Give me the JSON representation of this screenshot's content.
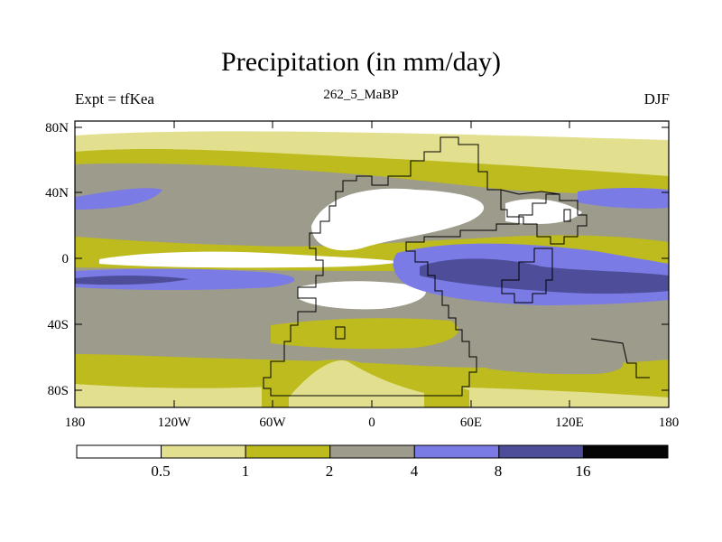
{
  "figure": {
    "title": "Precipitation (in mm/day)",
    "subtitle": "262_5_MaBP",
    "left_string": "Expt = tfKea",
    "right_string": "DJF"
  },
  "axes": {
    "x_ticks": [
      "180",
      "120W",
      "60W",
      "0",
      "60E",
      "120E",
      "180"
    ],
    "y_ticks": [
      "80N",
      "40N",
      "0",
      "40S",
      "80S"
    ]
  },
  "colorbar": {
    "labels": [
      "0.5",
      "1",
      "2",
      "4",
      "8",
      "16"
    ],
    "colors": [
      "#ffffff",
      "#e2e08f",
      "#bdbb1e",
      "#9d9b8b",
      "#7b7be6",
      "#4d4d99",
      "#050505"
    ]
  }
}
